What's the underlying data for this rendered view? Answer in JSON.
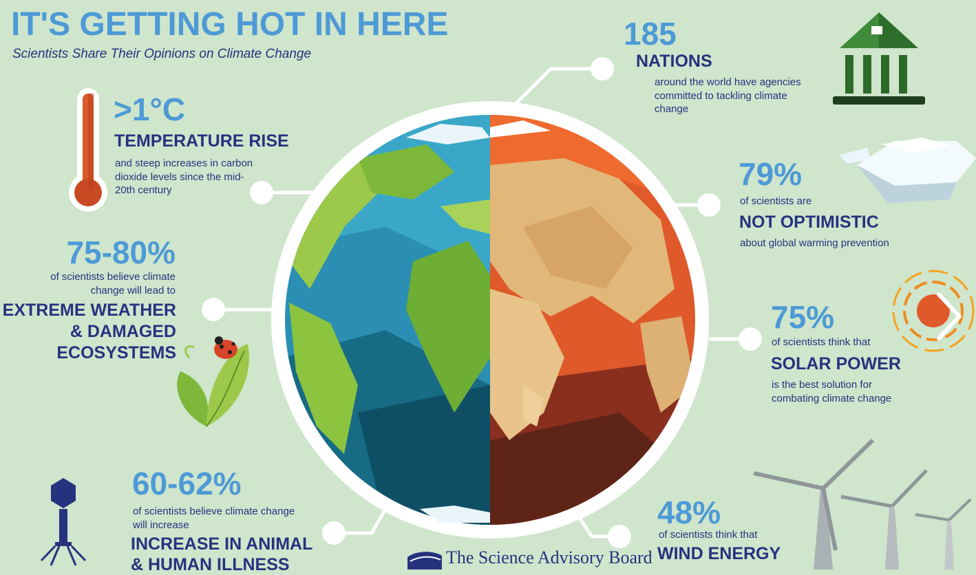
{
  "header": {
    "title": "IT'S GETTING HOT IN HERE",
    "subtitle": "Scientists Share Their Opinions on Climate Change"
  },
  "stats": {
    "temperature": {
      "value": ">1°C",
      "headline": "TEMPERATURE RISE",
      "description": "and steep increases in carbon dioxide levels since the mid-20th century"
    },
    "nations": {
      "value": "185",
      "headline": "NATIONS",
      "description": "around the world have agencies committed to tackling climate change"
    },
    "extreme_weather": {
      "value": "75-80%",
      "intro": "of scientists believe climate change will lead to",
      "headline_line1": "EXTREME WEATHER",
      "headline_line2": "& DAMAGED",
      "headline_line3": "ECOSYSTEMS"
    },
    "not_optimistic": {
      "value": "79%",
      "intro": "of scientists are",
      "headline": "NOT OPTIMISTIC",
      "description": "about global warming prevention"
    },
    "solar": {
      "value": "75%",
      "intro": "of scientists think that",
      "headline": "SOLAR POWER",
      "description": "is the best solution for combating climate change"
    },
    "illness": {
      "value": "60-62%",
      "intro": "of scientists believe climate change will increase",
      "headline_line1": "INCREASE IN ANIMAL",
      "headline_line2": "& HUMAN ILLNESS"
    },
    "wind": {
      "value": "48%",
      "intro": "of scientists think that",
      "headline": "WIND ENERGY"
    }
  },
  "footer": {
    "logo_text": "The Science Advisory Board"
  },
  "icons": [
    "thermometer-icon",
    "government-building-icon",
    "ice-floe-icon",
    "sun-icon",
    "leaf-ladybug-icon",
    "virus-icon",
    "wind-turbine-icon",
    "globe-illustration",
    "next-arrow-icon"
  ],
  "colors": {
    "accent_blue": "#4d9ad6",
    "navy": "#25337f",
    "background": "#cfe5cc"
  }
}
